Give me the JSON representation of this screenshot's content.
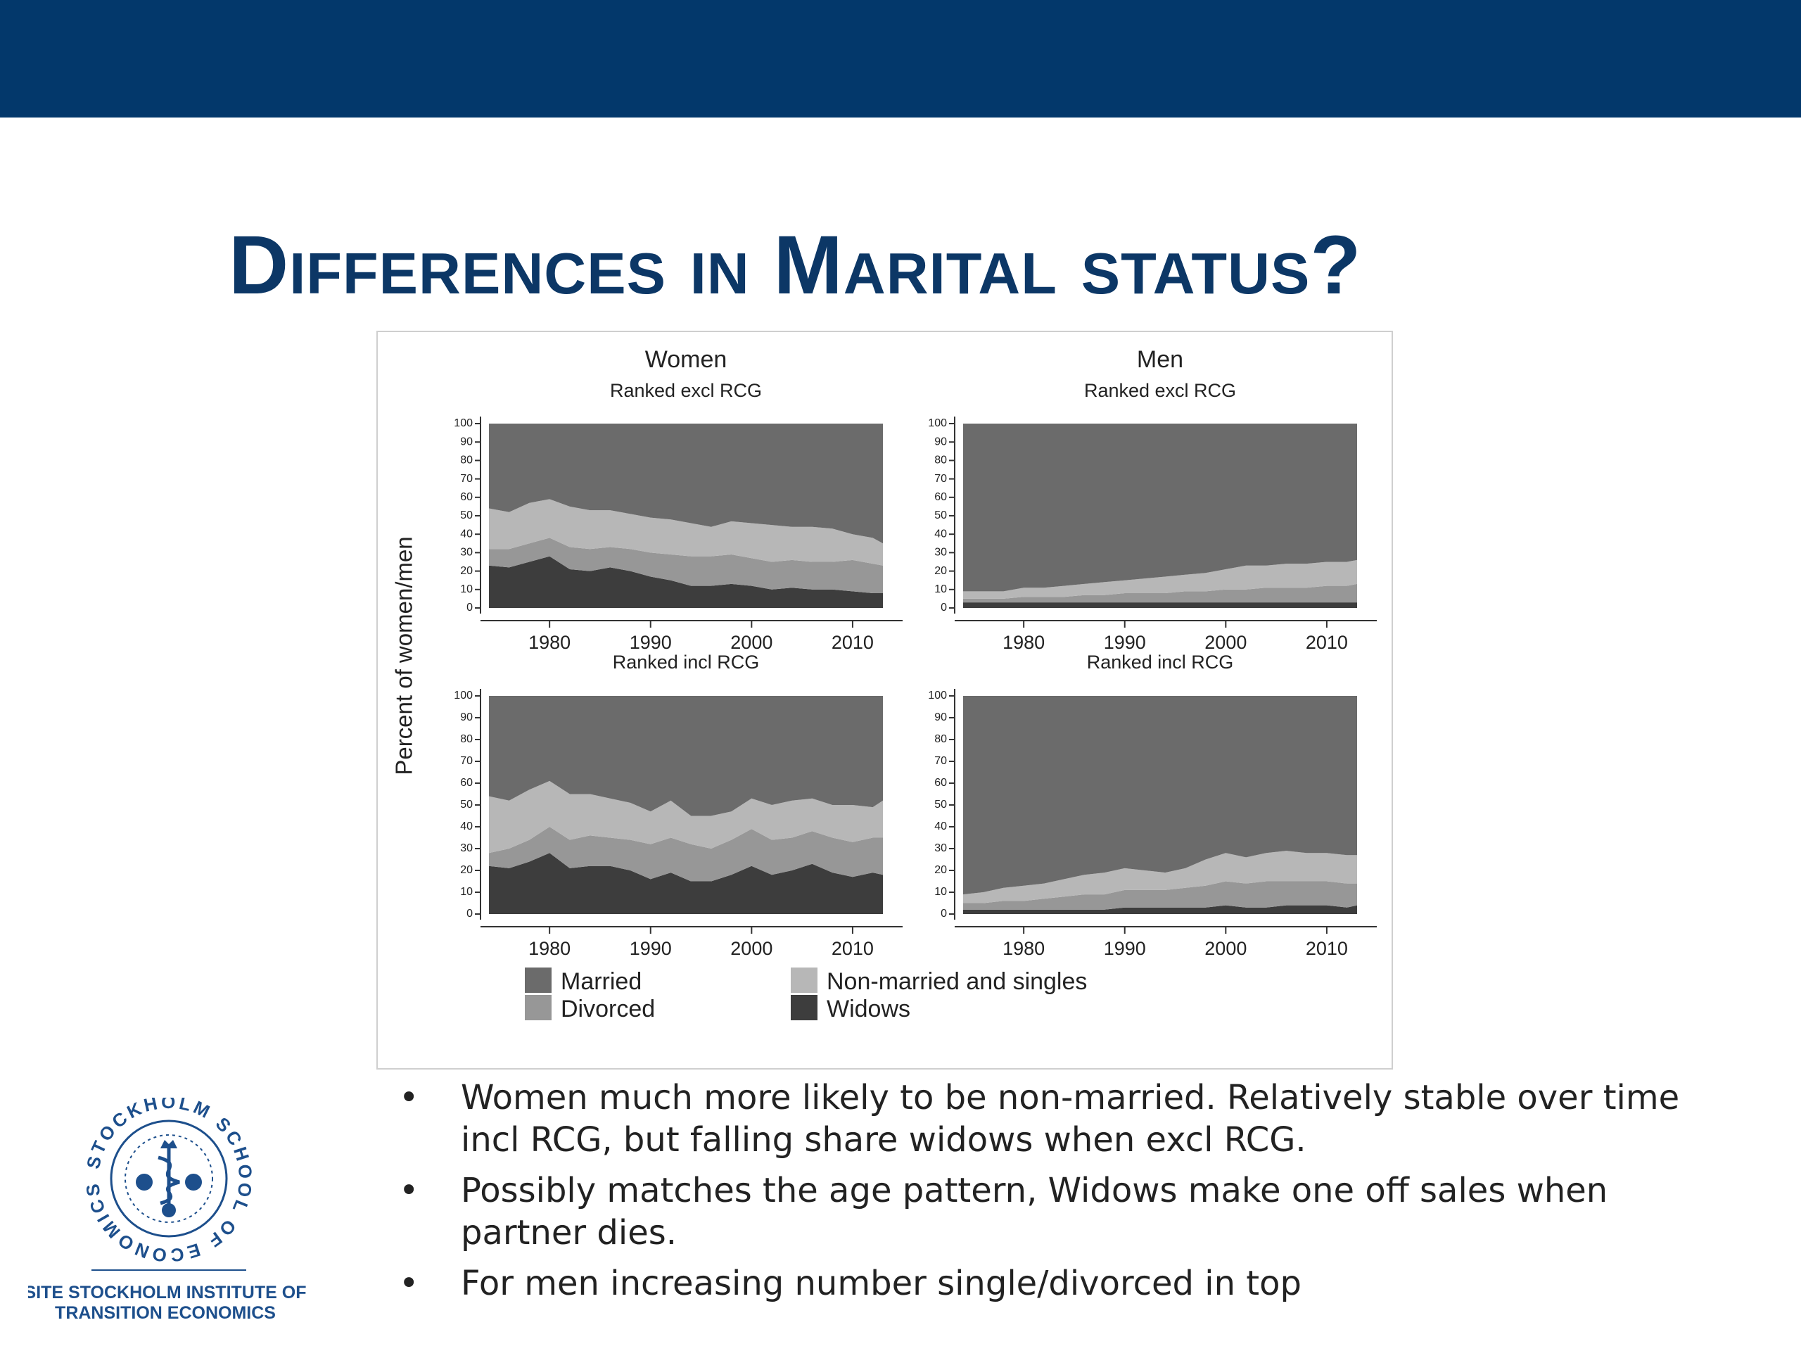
{
  "slide": {
    "title": "Differences in Marital status?",
    "colors": {
      "banner": "#03386b",
      "title": "#0c3766"
    }
  },
  "chart_data": {
    "type": "area",
    "ylabel": "Percent of women/men",
    "yticks": [
      0,
      10,
      20,
      30,
      40,
      50,
      60,
      70,
      80,
      90,
      100
    ],
    "xticks": [
      1980,
      1990,
      2000,
      2010
    ],
    "xlim": [
      1974,
      2013
    ],
    "ylim": [
      0,
      100
    ],
    "stacked": true,
    "legend_position": "bottom",
    "legend": [
      {
        "name": "Married",
        "color": "#6b6b6b"
      },
      {
        "name": "Non-married and singles",
        "color": "#b7b7b7"
      },
      {
        "name": "Divorced",
        "color": "#979797"
      },
      {
        "name": "Widows",
        "color": "#3d3d3d"
      }
    ],
    "panels": [
      {
        "title": "Women",
        "subtitle": "Ranked excl RCG",
        "x": [
          1974,
          1976,
          1978,
          1980,
          1982,
          1984,
          1986,
          1988,
          1990,
          1992,
          1994,
          1996,
          1998,
          2000,
          2002,
          2004,
          2006,
          2008,
          2010,
          2012,
          2013
        ],
        "series": [
          {
            "name": "Widows",
            "values": [
              23,
              22,
              25,
              28,
              21,
              20,
              22,
              20,
              17,
              15,
              12,
              12,
              13,
              12,
              10,
              11,
              10,
              10,
              9,
              8,
              8
            ]
          },
          {
            "name": "Divorced",
            "values": [
              9,
              10,
              10,
              10,
              12,
              12,
              11,
              12,
              13,
              14,
              16,
              16,
              16,
              15,
              15,
              15,
              15,
              15,
              17,
              16,
              15
            ]
          },
          {
            "name": "Non-married and singles",
            "values": [
              22,
              20,
              22,
              21,
              22,
              21,
              20,
              19,
              19,
              19,
              18,
              16,
              18,
              19,
              20,
              18,
              19,
              18,
              14,
              14,
              12
            ]
          },
          {
            "name": "Married",
            "values": [
              46,
              48,
              43,
              41,
              45,
              47,
              47,
              49,
              51,
              52,
              54,
              56,
              53,
              54,
              55,
              56,
              56,
              57,
              60,
              62,
              65
            ]
          }
        ]
      },
      {
        "title": "Men",
        "subtitle": "Ranked excl RCG",
        "x": [
          1974,
          1976,
          1978,
          1980,
          1982,
          1984,
          1986,
          1988,
          1990,
          1992,
          1994,
          1996,
          1998,
          2000,
          2002,
          2004,
          2006,
          2008,
          2010,
          2012,
          2013
        ],
        "series": [
          {
            "name": "Widows",
            "values": [
              3,
              3,
              3,
              3,
              3,
              3,
              3,
              3,
              3,
              3,
              3,
              3,
              3,
              3,
              3,
              3,
              3,
              3,
              3,
              3,
              3
            ]
          },
          {
            "name": "Divorced",
            "values": [
              2,
              2,
              2,
              3,
              3,
              3,
              4,
              4,
              5,
              5,
              5,
              6,
              6,
              7,
              7,
              8,
              8,
              8,
              9,
              9,
              10
            ]
          },
          {
            "name": "Non-married and singles",
            "values": [
              4,
              4,
              4,
              5,
              5,
              6,
              6,
              7,
              7,
              8,
              9,
              9,
              10,
              11,
              13,
              12,
              13,
              13,
              13,
              13,
              13
            ]
          },
          {
            "name": "Married",
            "values": [
              91,
              91,
              91,
              89,
              89,
              88,
              87,
              86,
              85,
              84,
              83,
              82,
              81,
              79,
              77,
              77,
              76,
              76,
              75,
              75,
              74
            ]
          }
        ]
      },
      {
        "title": "",
        "subtitle": "Ranked incl RCG",
        "x": [
          1974,
          1976,
          1978,
          1980,
          1982,
          1984,
          1986,
          1988,
          1990,
          1992,
          1994,
          1996,
          1998,
          2000,
          2002,
          2004,
          2006,
          2008,
          2010,
          2012,
          2013
        ],
        "series": [
          {
            "name": "Widows",
            "values": [
              22,
              21,
              24,
              28,
              21,
              22,
              22,
              20,
              16,
              19,
              15,
              15,
              18,
              22,
              18,
              20,
              23,
              19,
              17,
              19,
              18
            ]
          },
          {
            "name": "Divorced",
            "values": [
              6,
              9,
              10,
              12,
              13,
              14,
              13,
              14,
              16,
              16,
              17,
              15,
              16,
              17,
              16,
              15,
              15,
              16,
              16,
              16,
              17
            ]
          },
          {
            "name": "Non-married and singles",
            "values": [
              26,
              22,
              23,
              21,
              21,
              19,
              18,
              17,
              15,
              17,
              13,
              15,
              13,
              14,
              16,
              17,
              15,
              15,
              17,
              14,
              17
            ]
          },
          {
            "name": "Married",
            "values": [
              46,
              48,
              43,
              39,
              45,
              45,
              47,
              49,
              53,
              48,
              55,
              55,
              53,
              47,
              50,
              48,
              47,
              50,
              50,
              51,
              48
            ]
          }
        ]
      },
      {
        "title": "",
        "subtitle": "Ranked incl RCG",
        "x": [
          1974,
          1976,
          1978,
          1980,
          1982,
          1984,
          1986,
          1988,
          1990,
          1992,
          1994,
          1996,
          1998,
          2000,
          2002,
          2004,
          2006,
          2008,
          2010,
          2012,
          2013
        ],
        "series": [
          {
            "name": "Widows",
            "values": [
              2,
              2,
              2,
              2,
              2,
              2,
              2,
              2,
              3,
              3,
              3,
              3,
              3,
              4,
              3,
              3,
              4,
              4,
              4,
              3,
              4
            ]
          },
          {
            "name": "Divorced",
            "values": [
              3,
              3,
              4,
              4,
              5,
              6,
              7,
              7,
              8,
              8,
              8,
              9,
              10,
              11,
              11,
              12,
              11,
              11,
              11,
              11,
              10
            ]
          },
          {
            "name": "Non-married and singles",
            "values": [
              4,
              5,
              6,
              7,
              7,
              8,
              9,
              10,
              10,
              9,
              8,
              9,
              12,
              13,
              12,
              13,
              14,
              13,
              13,
              13,
              13
            ]
          },
          {
            "name": "Married",
            "values": [
              91,
              90,
              88,
              87,
              86,
              84,
              82,
              81,
              79,
              80,
              81,
              79,
              75,
              72,
              74,
              72,
              71,
              72,
              72,
              73,
              73
            ]
          }
        ]
      }
    ]
  },
  "bullets": [
    "Women much more likely to be non-married. Relatively stable over time incl RCG, but falling share widows when excl RCG.",
    "Possibly matches the age pattern, Widows make one off sales when partner dies.",
    "For men increasing number single/divorced in top"
  ],
  "bullet_marker": "•",
  "logo": {
    "ring_text": "STOCKHOLM SCHOOL OF ECONOMICS",
    "caption_line1": "SITE STOCKHOLM INSTITUTE OF",
    "caption_line2": "TRANSITION ECONOMICS"
  }
}
